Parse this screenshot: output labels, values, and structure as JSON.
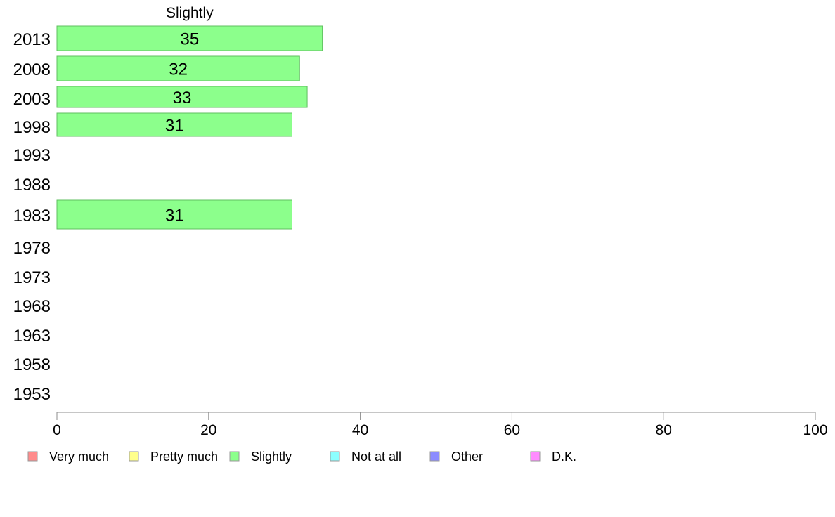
{
  "chart_data": {
    "type": "bar",
    "orientation": "horizontal",
    "title": "Slightly",
    "categories": [
      "2013",
      "2008",
      "2003",
      "1998",
      "1993",
      "1988",
      "1983",
      "1978",
      "1973",
      "1968",
      "1963",
      "1958",
      "1953"
    ],
    "series": [
      {
        "name": "Slightly",
        "values": [
          35,
          32,
          33,
          31,
          null,
          null,
          31,
          null,
          null,
          null,
          null,
          null,
          null
        ]
      }
    ],
    "xlim": [
      0,
      100
    ],
    "xticks": [
      0,
      20,
      40,
      60,
      80,
      100
    ],
    "grid": false,
    "legend_placement": "bottom",
    "legend": [
      {
        "label": "Very much",
        "color": "#ff8c8c"
      },
      {
        "label": "Pretty much",
        "color": "#ffff8c"
      },
      {
        "label": "Slightly",
        "color": "#8cff8c"
      },
      {
        "label": "Not at all",
        "color": "#8cffff"
      },
      {
        "label": "Other",
        "color": "#8c8cff"
      },
      {
        "label": "D.K.",
        "color": "#ff8cff"
      }
    ],
    "bar_color": "#8cff8c"
  }
}
